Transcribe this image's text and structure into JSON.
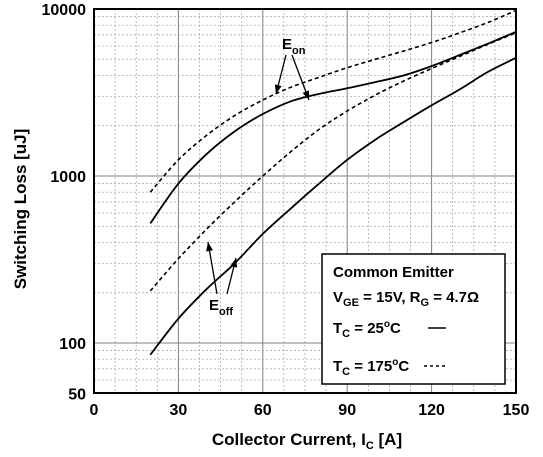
{
  "chart_data": {
    "type": "line",
    "ylabel": "Switching Loss [uJ]",
    "xlabel": {
      "main": "Collector Current, I",
      "sub": "C",
      "unit": " [A]"
    },
    "xlim": [
      0,
      150
    ],
    "ylim": [
      50,
      10000
    ],
    "yscale": "log",
    "x_ticks": [
      "0",
      "30",
      "60",
      "90",
      "120",
      "150"
    ],
    "x_tick_values": [
      0,
      30,
      60,
      90,
      120,
      150
    ],
    "y_ticks": [
      "10000",
      "1000",
      "100",
      "50"
    ],
    "y_tick_values": [
      10000,
      1000,
      100,
      50
    ],
    "grid": true,
    "series": [
      {
        "group": "Eon",
        "temp": "25",
        "style": "solid",
        "x": [
          20,
          30,
          40,
          50,
          60,
          70,
          80,
          90,
          100,
          110,
          120,
          130,
          140,
          150
        ],
        "y": [
          520,
          900,
          1350,
          1850,
          2350,
          2800,
          3100,
          3350,
          3650,
          4000,
          4550,
          5300,
          6200,
          7300
        ]
      },
      {
        "group": "Eon",
        "temp": "175",
        "style": "dashed",
        "x": [
          20,
          30,
          40,
          50,
          60,
          70,
          80,
          90,
          100,
          110,
          120,
          130,
          140,
          150
        ],
        "y": [
          800,
          1250,
          1750,
          2300,
          2850,
          3400,
          3900,
          4450,
          5000,
          5600,
          6300,
          7200,
          8300,
          9800
        ]
      },
      {
        "group": "Eoff",
        "temp": "25",
        "style": "solid",
        "x": [
          20,
          30,
          40,
          50,
          60,
          70,
          80,
          90,
          100,
          110,
          120,
          130,
          140,
          150
        ],
        "y": [
          85,
          140,
          210,
          300,
          450,
          640,
          900,
          1250,
          1650,
          2100,
          2650,
          3300,
          4200,
          5100
        ]
      },
      {
        "group": "Eoff",
        "temp": "175",
        "style": "dashed",
        "x": [
          20,
          30,
          40,
          50,
          60,
          70,
          80,
          90,
          100,
          110,
          120,
          130,
          140,
          150
        ],
        "y": [
          205,
          320,
          480,
          700,
          1000,
          1400,
          1900,
          2450,
          3050,
          3700,
          4400,
          5200,
          6150,
          7200
        ]
      }
    ],
    "annotations": {
      "eon": {
        "main": "E",
        "sub": "on"
      },
      "eoff": {
        "main": "E",
        "sub": "off"
      }
    },
    "legend": {
      "title": "Common Emitter",
      "line2": {
        "v": "V",
        "v_sub": "GE",
        "v_val": " = 15V, R",
        "r_sub": "G",
        "r_val": " = 4.7Ω"
      },
      "t25": {
        "t": "T",
        "t_sub": "C",
        "val": " = 25",
        "deg": "o",
        "unit": "C"
      },
      "t175": {
        "t": "T",
        "t_sub": "C",
        "val": " = 175",
        "deg": "o",
        "unit": "C"
      }
    }
  }
}
